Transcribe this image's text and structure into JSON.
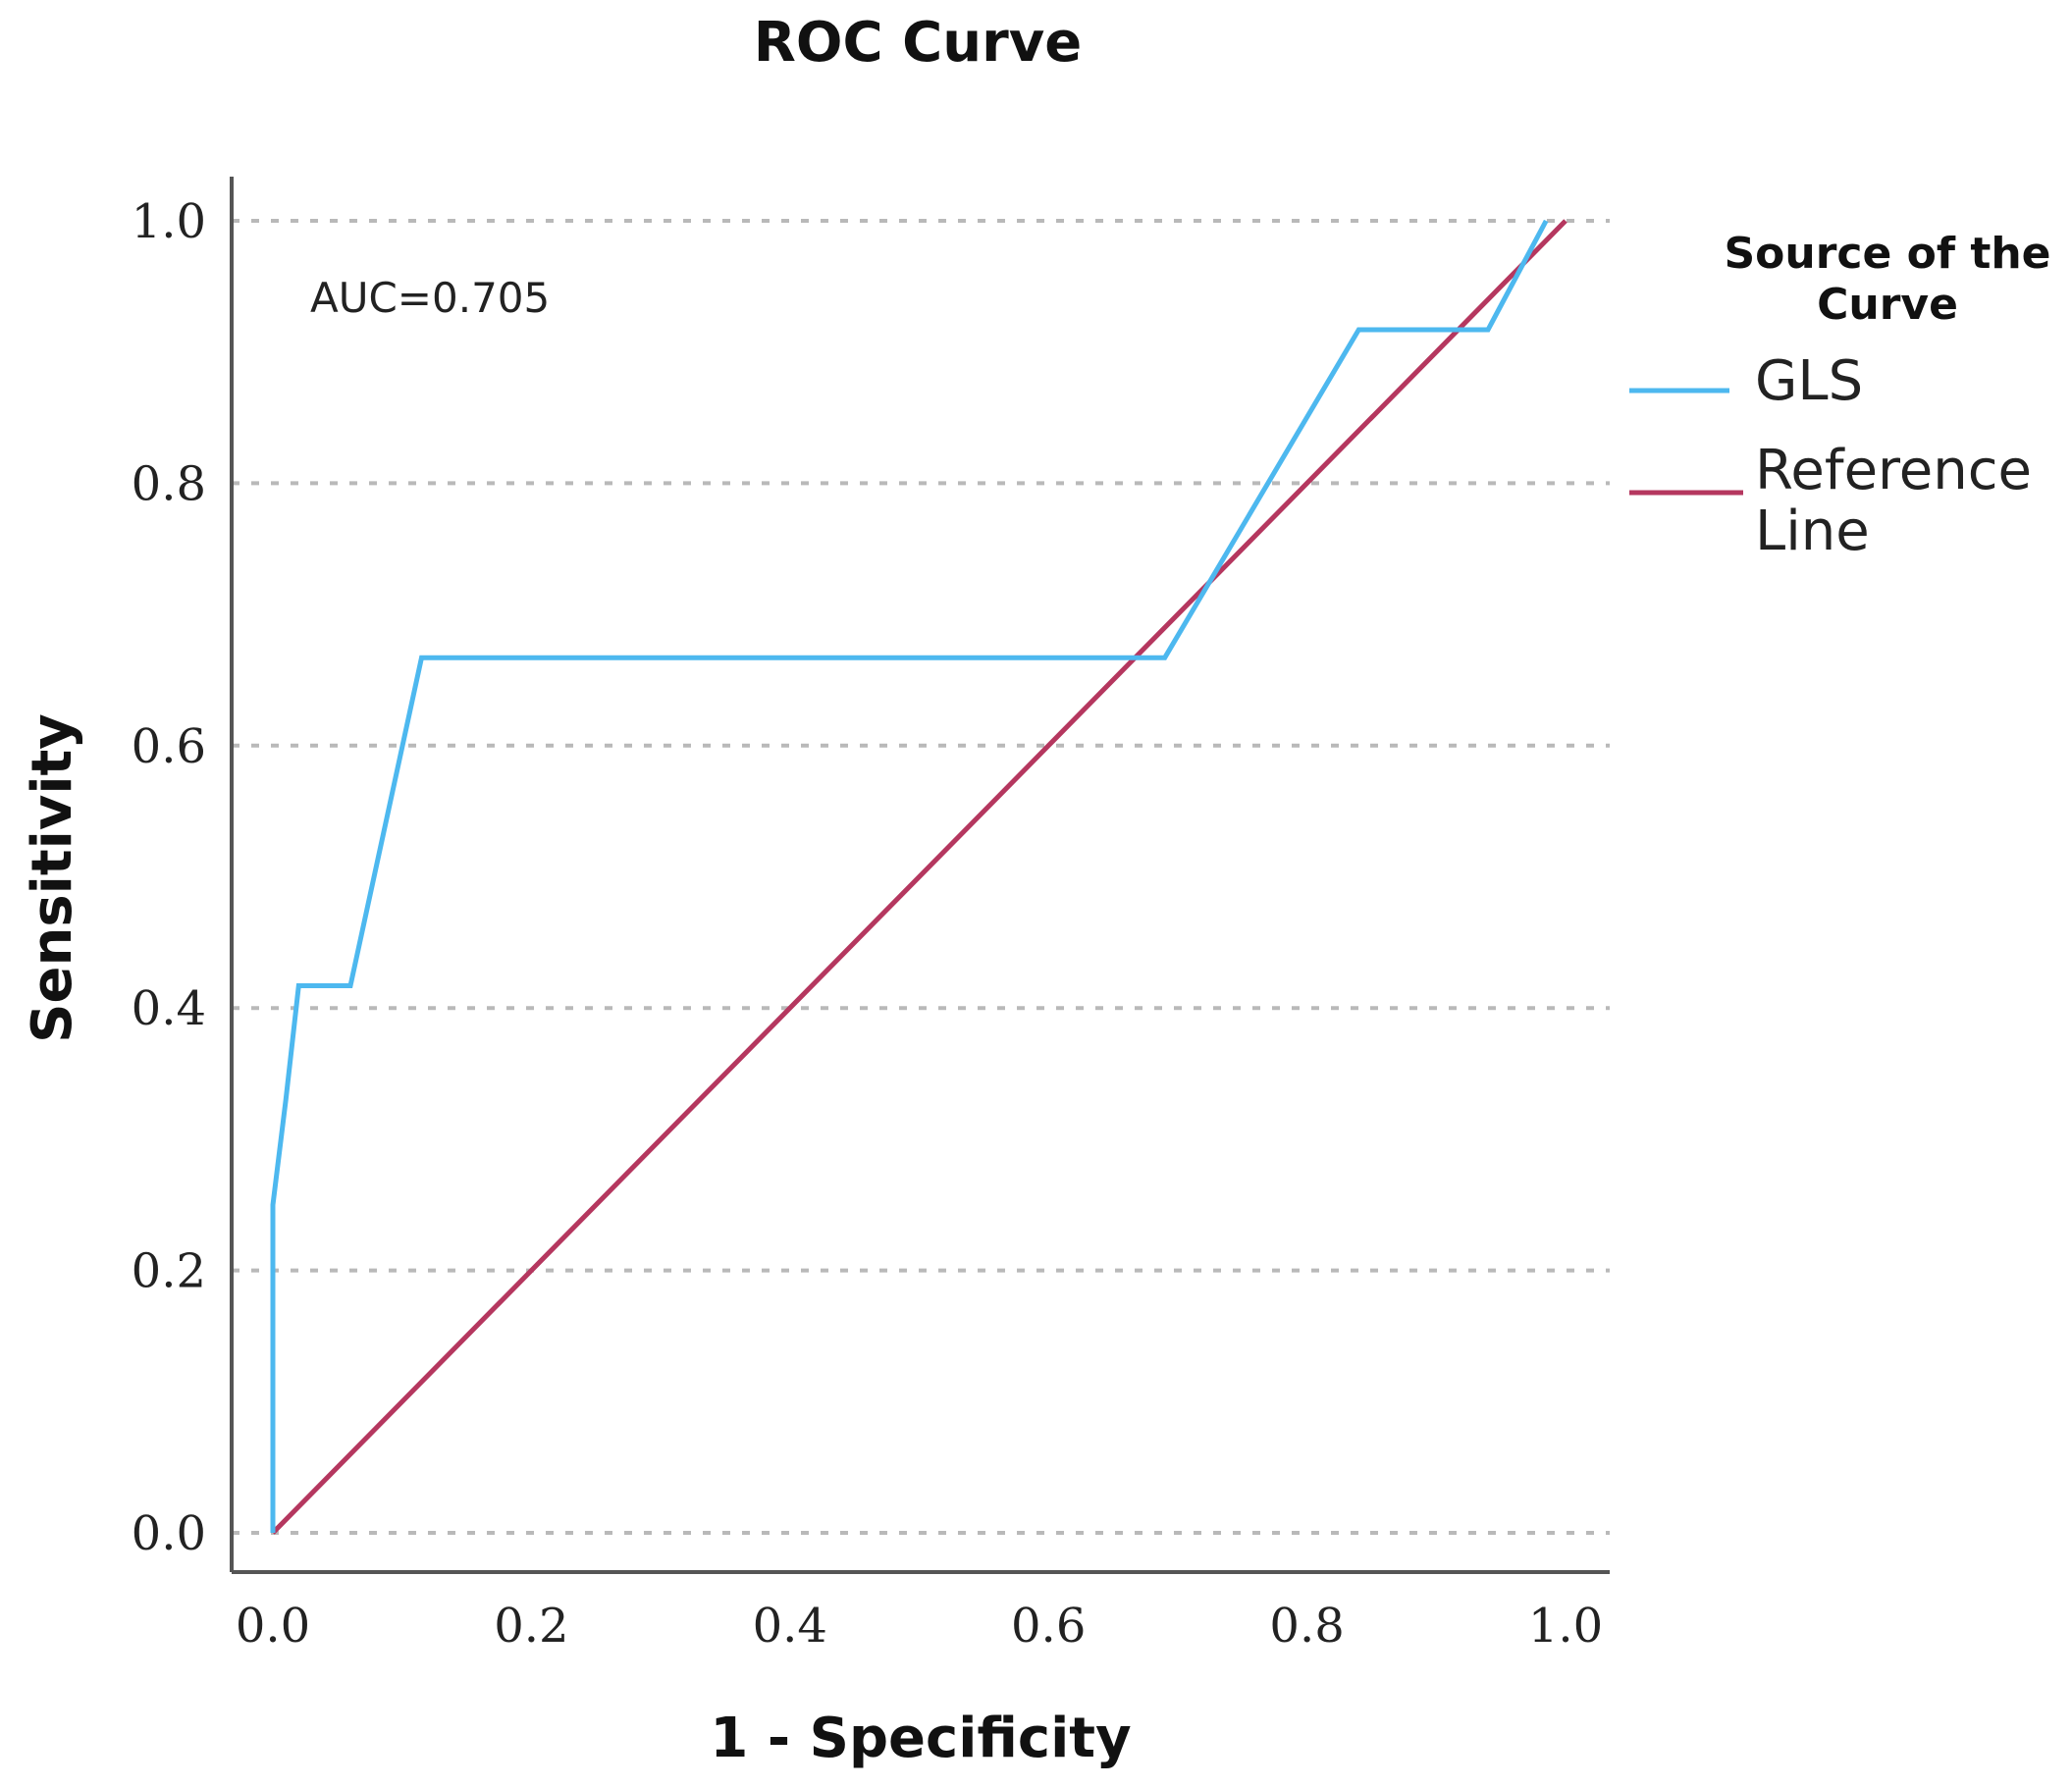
{
  "chart_data": {
    "type": "line",
    "title": "ROC Curve",
    "xlabel": "1 - Specificity",
    "ylabel": "Sensitivity",
    "xlim": [
      0.0,
      1.0
    ],
    "ylim": [
      0.0,
      1.0
    ],
    "x_ticks": [
      "0.0",
      "0.2",
      "0.4",
      "0.6",
      "0.8",
      "1.0"
    ],
    "y_ticks": [
      "0.0",
      "0.2",
      "0.4",
      "0.6",
      "0.8",
      "1.0"
    ],
    "grid": "horizontal dotted",
    "annotation": "AUC=0.705",
    "legend": {
      "title_lines": [
        "Source of the",
        "Curve"
      ],
      "placement": "right",
      "entries": [
        {
          "label_lines": [
            "GLS"
          ],
          "color": "#4db8ef"
        },
        {
          "label_lines": [
            "Reference",
            "Line"
          ],
          "color": "#b5375f"
        }
      ]
    },
    "series": [
      {
        "name": "GLS",
        "color": "#4db8ef",
        "x": [
          0.0,
          0.0,
          0.0,
          0.01,
          0.02,
          0.02,
          0.06,
          0.06,
          0.115,
          0.115,
          0.69,
          0.69,
          0.84,
          0.84,
          0.94,
          0.94,
          0.985,
          0.985
        ],
        "y": [
          0.0,
          0.25,
          0.25,
          0.33,
          0.417,
          0.417,
          0.417,
          0.417,
          0.667,
          0.667,
          0.667,
          0.667,
          0.917,
          0.917,
          0.917,
          0.917,
          1.0,
          1.0
        ]
      },
      {
        "name": "Reference Line",
        "color": "#b5375f",
        "x": [
          0.0,
          1.0
        ],
        "y": [
          0.0,
          1.0
        ]
      }
    ]
  }
}
